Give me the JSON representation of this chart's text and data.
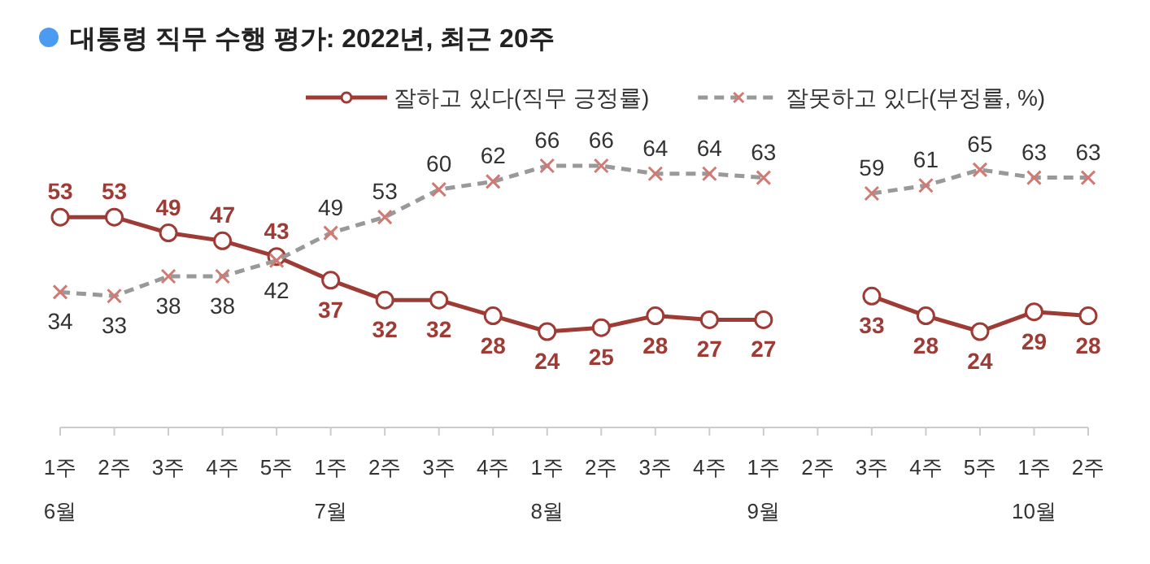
{
  "chart_data": {
    "type": "line",
    "title": "대통령 직무 수행 평가: 2022년, 최근 20주",
    "categories": [
      "1주\n6월",
      "2주",
      "3주",
      "4주",
      "5주",
      "1주\n7월",
      "2주",
      "3주",
      "4주",
      "1주\n8월",
      "2주",
      "3주",
      "4주",
      "1주\n9월",
      "2주",
      "3주",
      "4주",
      "5주",
      "1주\n10월",
      "2주"
    ],
    "series": [
      {
        "name": "잘하고 있다(직무 긍정률)",
        "color": "#9e3b35",
        "marker": "circle",
        "line_style": "solid",
        "values": [
          53,
          53,
          49,
          47,
          43,
          37,
          32,
          32,
          28,
          24,
          25,
          28,
          27,
          27,
          null,
          33,
          28,
          24,
          29,
          28
        ]
      },
      {
        "name": "잘못하고 있다(부정률, %)",
        "color": "#999999",
        "marker": "cross",
        "line_style": "dashed",
        "values": [
          34,
          33,
          38,
          38,
          42,
          49,
          53,
          60,
          62,
          66,
          66,
          64,
          64,
          63,
          null,
          59,
          61,
          65,
          63,
          63
        ]
      }
    ],
    "data_labels": true,
    "legend": "top right"
  }
}
